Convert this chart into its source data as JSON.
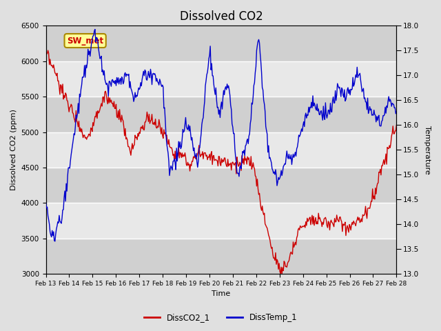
{
  "title": "Dissolved CO2",
  "xlabel": "Time",
  "ylabel_left": "Dissolved CO2 (ppm)",
  "ylabel_right": "Temperature",
  "ylim_left": [
    3000,
    6500
  ],
  "ylim_right": [
    13.0,
    18.0
  ],
  "yticks_left": [
    3000,
    3500,
    4000,
    4500,
    5000,
    5500,
    6000,
    6500
  ],
  "yticks_right": [
    13.0,
    13.5,
    14.0,
    14.5,
    15.0,
    15.5,
    16.0,
    16.5,
    17.0,
    17.5,
    18.0
  ],
  "x_labels": [
    "Feb 13",
    "Feb 14",
    "Feb 15",
    "Feb 16",
    "Feb 17",
    "Feb 18",
    "Feb 19",
    "Feb 20",
    "Feb 21",
    "Feb 22",
    "Feb 23",
    "Feb 24",
    "Feb 25",
    "Feb 26",
    "Feb 27",
    "Feb 28"
  ],
  "legend_labels": [
    "DissCO2_1",
    "DissTemp_1"
  ],
  "legend_colors": [
    "#cc0000",
    "#0000cc"
  ],
  "line_color_co2": "#cc0000",
  "line_color_temp": "#0000cc",
  "bg_color": "#e0e0e0",
  "plot_bg": "#e8e8e8",
  "band_dark": "#d0d0d0",
  "band_light": "#e8e8e8",
  "annotation_text": "SW_met",
  "annotation_bg": "#ffff99",
  "annotation_border": "#aa8800",
  "annotation_text_color": "#cc0000",
  "grid_color": "#ffffff",
  "title_fontsize": 12,
  "figsize": [
    6.4,
    4.8
  ],
  "dpi": 100
}
